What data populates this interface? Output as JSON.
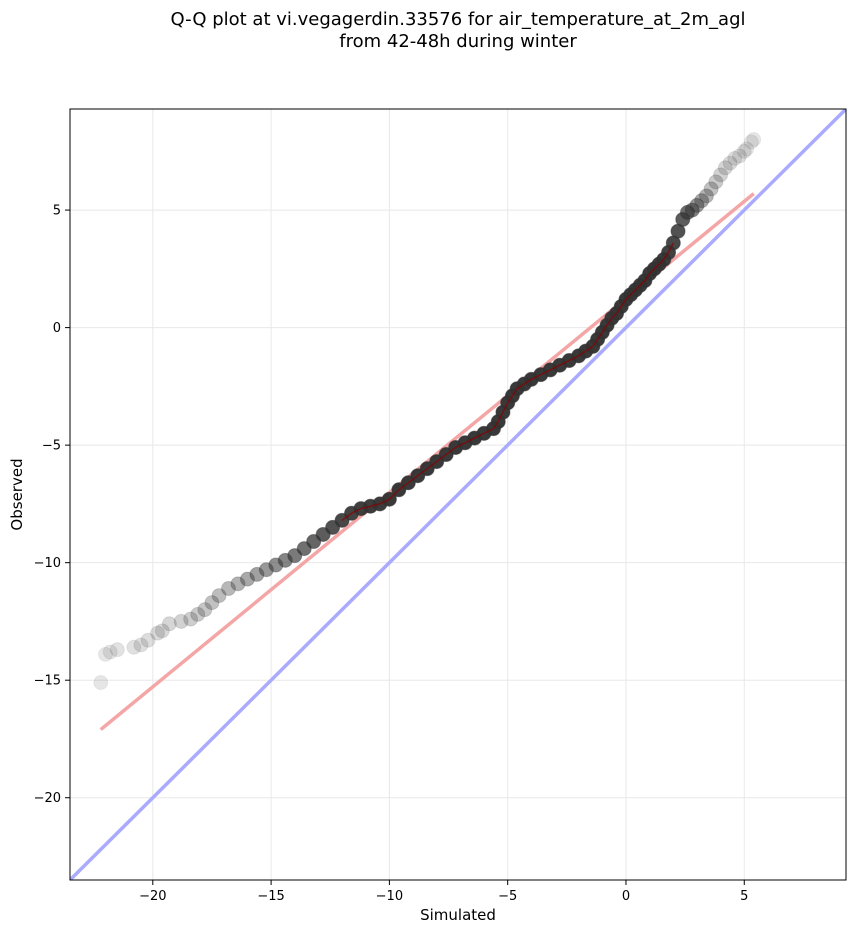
{
  "title_line1": "Q-Q plot at vi.vegagerdin.33576 for air_temperature_at_2m_agl",
  "title_line2": "from 42-48h during winter",
  "chart_data": {
    "type": "scatter",
    "title": "Q-Q plot at vi.vegagerdin.33576 for air_temperature_at_2m_agl from 42-48h during winter",
    "xlabel": "Simulated",
    "ylabel": "Observed",
    "xlim": [
      -23.5,
      9.3
    ],
    "ylim": [
      -23.5,
      9.3
    ],
    "xticks": [
      -20,
      -15,
      -10,
      -5,
      0,
      5
    ],
    "yticks": [
      -20,
      -15,
      -10,
      -5,
      0,
      5
    ],
    "xtick_labels": [
      "−20",
      "−15",
      "−10",
      "−5",
      "0",
      "5"
    ],
    "ytick_labels": [
      "−20",
      "−15",
      "−10",
      "−5",
      "0",
      "5"
    ],
    "grid": true,
    "colors": {
      "points": "#333333",
      "fit_line": "#f4a6a6",
      "identity_line": "#aaaaff",
      "median_trace": "#8b0000",
      "grid": "#e8e8e8"
    },
    "identity_line": {
      "x": [
        -23.5,
        9.3
      ],
      "y": [
        -23.5,
        9.3
      ]
    },
    "fit_line": {
      "x": [
        -22.2,
        5.4
      ],
      "y": [
        -17.1,
        5.7
      ]
    },
    "quantiles": {
      "x": [
        -22.2,
        -22.0,
        -21.8,
        -21.5,
        -20.8,
        -20.5,
        -20.2,
        -19.8,
        -19.6,
        -19.3,
        -18.8,
        -18.4,
        -18.1,
        -17.8,
        -17.5,
        -17.2,
        -16.8,
        -16.4,
        -16.0,
        -15.6,
        -15.2,
        -14.8,
        -14.4,
        -14.0,
        -13.6,
        -13.2,
        -12.8,
        -12.4,
        -12.0,
        -11.6,
        -11.2,
        -10.8,
        -10.4,
        -10.0,
        -9.6,
        -9.2,
        -8.8,
        -8.4,
        -8.0,
        -7.6,
        -7.2,
        -6.8,
        -6.4,
        -6.0,
        -5.6,
        -5.4,
        -5.2,
        -5.0,
        -4.8,
        -4.6,
        -4.3,
        -4.0,
        -3.6,
        -3.2,
        -2.8,
        -2.4,
        -2.0,
        -1.7,
        -1.4,
        -1.2,
        -1.0,
        -0.8,
        -0.6,
        -0.4,
        -0.2,
        0.0,
        0.2,
        0.4,
        0.6,
        0.8,
        1.0,
        1.2,
        1.4,
        1.6,
        1.8,
        2.0,
        2.2,
        2.4,
        2.6,
        2.8,
        3.0,
        3.2,
        3.4,
        3.6,
        3.8,
        4.0,
        4.2,
        4.4,
        4.6,
        4.8,
        5.0,
        5.1,
        5.3,
        5.4
      ],
      "y": [
        -15.1,
        -13.9,
        -13.8,
        -13.7,
        -13.6,
        -13.5,
        -13.3,
        -13.0,
        -12.9,
        -12.6,
        -12.5,
        -12.4,
        -12.2,
        -12.0,
        -11.7,
        -11.4,
        -11.1,
        -10.9,
        -10.7,
        -10.5,
        -10.3,
        -10.1,
        -9.9,
        -9.7,
        -9.4,
        -9.1,
        -8.8,
        -8.5,
        -8.2,
        -7.9,
        -7.7,
        -7.6,
        -7.5,
        -7.3,
        -6.9,
        -6.6,
        -6.3,
        -6.0,
        -5.7,
        -5.4,
        -5.1,
        -4.9,
        -4.7,
        -4.5,
        -4.3,
        -4.0,
        -3.6,
        -3.2,
        -2.9,
        -2.6,
        -2.4,
        -2.2,
        -2.0,
        -1.8,
        -1.6,
        -1.4,
        -1.2,
        -1.0,
        -0.8,
        -0.5,
        -0.2,
        0.1,
        0.4,
        0.6,
        0.9,
        1.2,
        1.4,
        1.6,
        1.8,
        2.0,
        2.3,
        2.5,
        2.7,
        2.9,
        3.2,
        3.6,
        4.1,
        4.6,
        4.9,
        5.0,
        5.2,
        5.4,
        5.6,
        5.9,
        6.2,
        6.5,
        6.8,
        7.0,
        7.2,
        7.3,
        7.5,
        7.6,
        7.9,
        8.0
      ]
    },
    "point_opacity": [
      0.12,
      0.12,
      0.13,
      0.14,
      0.15,
      0.16,
      0.17,
      0.18,
      0.19,
      0.2,
      0.22,
      0.24,
      0.26,
      0.28,
      0.3,
      0.32,
      0.35,
      0.38,
      0.42,
      0.46,
      0.5,
      0.55,
      0.6,
      0.65,
      0.7,
      0.75,
      0.8,
      0.85,
      0.9,
      0.92,
      0.94,
      0.95,
      0.96,
      0.97,
      0.97,
      0.97,
      0.97,
      0.97,
      0.97,
      0.97,
      0.97,
      0.97,
      0.97,
      0.97,
      0.97,
      0.97,
      0.97,
      0.97,
      0.97,
      0.97,
      0.97,
      0.97,
      0.97,
      0.97,
      0.97,
      0.97,
      0.97,
      0.97,
      0.97,
      0.97,
      0.97,
      0.97,
      0.97,
      0.97,
      0.97,
      0.97,
      0.97,
      0.97,
      0.97,
      0.97,
      0.97,
      0.97,
      0.96,
      0.95,
      0.93,
      0.9,
      0.85,
      0.8,
      0.7,
      0.6,
      0.5,
      0.42,
      0.36,
      0.3,
      0.26,
      0.22,
      0.2,
      0.18,
      0.16,
      0.15,
      0.14,
      0.13,
      0.12,
      0.12
    ]
  }
}
